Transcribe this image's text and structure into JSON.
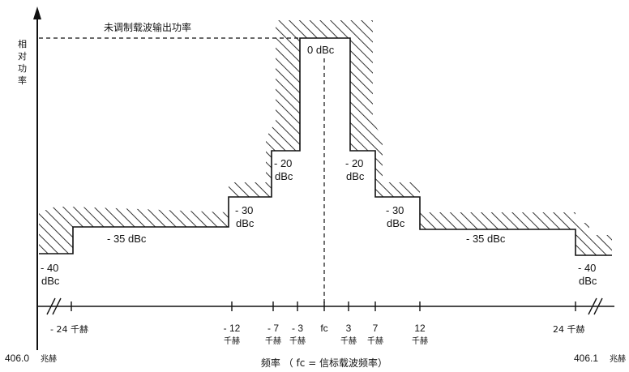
{
  "y_axis_label": [
    "相",
    "对",
    "功",
    "率"
  ],
  "unmodulated_label": "未调制载波输出功率",
  "levels": {
    "top": "0 dBc",
    "minus20_left": [
      "- 20",
      "dBc"
    ],
    "minus20_right": [
      "- 20",
      "dBc"
    ],
    "minus30_left": [
      "- 30",
      "dBc"
    ],
    "minus30_right": [
      "- 30",
      "dBc"
    ],
    "minus35_left": "- 35 dBc",
    "minus35_right": "- 35 dBc",
    "minus40_left": [
      "- 40",
      "dBc"
    ],
    "minus40_right": [
      "- 40",
      "dBc"
    ]
  },
  "ticks": {
    "minus24": "- 24 千赫",
    "minus12": [
      "- 12",
      "千赫"
    ],
    "minus7": [
      "- 7",
      "千赫"
    ],
    "minus3": [
      "- 3",
      "千赫"
    ],
    "fc": "fc",
    "plus3": [
      "3",
      "千赫"
    ],
    "plus7": [
      "7",
      "千赫"
    ],
    "plus12": [
      "12",
      "千赫"
    ],
    "plus24": "24 千赫"
  },
  "edge_left": [
    "406.0",
    "兆赫"
  ],
  "edge_right": [
    "406.1",
    "兆赫"
  ],
  "x_axis_title": "频率 （ fc = 信标载波频率）"
}
